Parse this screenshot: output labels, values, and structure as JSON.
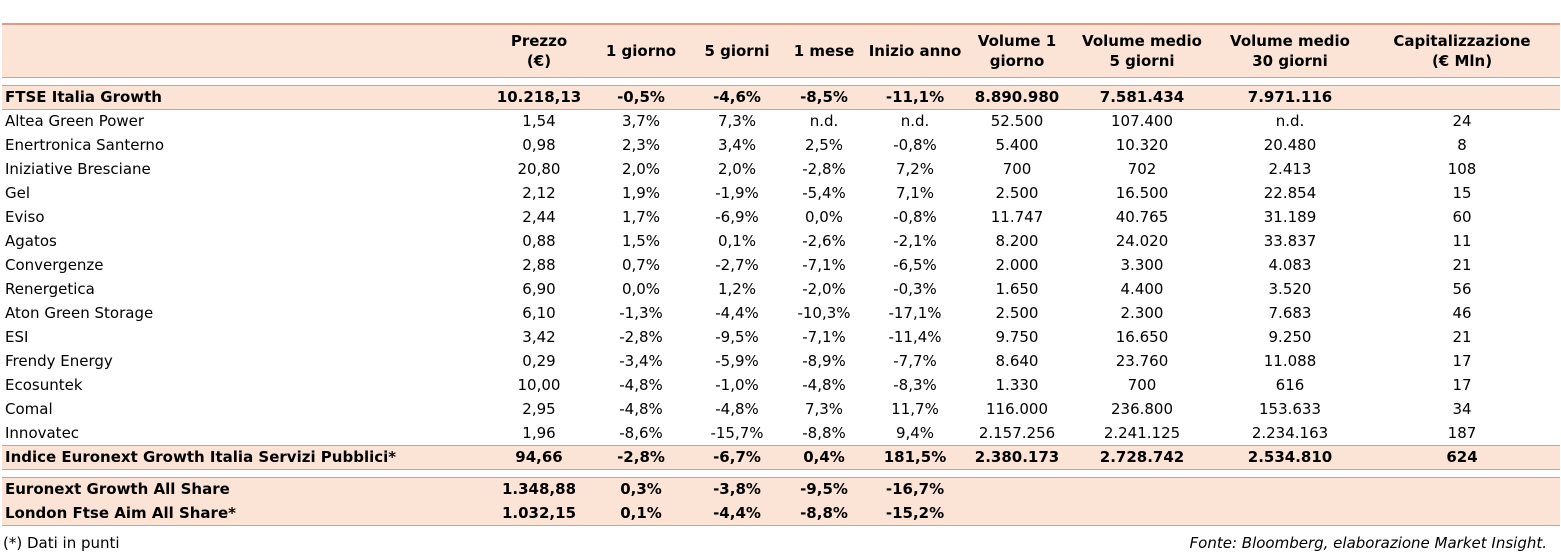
{
  "headers": {
    "name": "",
    "prezzo_l1": "Prezzo",
    "prezzo_l2": "(€)",
    "g1": "1 giorno",
    "g5": "5 giorni",
    "m1": "1 mese",
    "ia": "Inizio anno",
    "v1_l1": "Volume 1",
    "v1_l2": "giorno",
    "v5_l1": "Volume medio",
    "v5_l2": "5 giorni",
    "v30_l1": "Volume medio",
    "v30_l2": "30 giorni",
    "cap_l1": "Capitalizzazione",
    "cap_l2": "(€ Mln)"
  },
  "summary": {
    "name": "FTSE Italia Growth",
    "prezzo": "10.218,13",
    "g1": "-0,5%",
    "g5": "-4,6%",
    "m1": "-8,5%",
    "ia": "-11,1%",
    "v1": "8.890.980",
    "v5": "7.581.434",
    "v30": "7.971.116",
    "cap": ""
  },
  "rows": [
    {
      "name": "Altea Green Power",
      "prezzo": "1,54",
      "g1": "3,7%",
      "g5": "7,3%",
      "m1": "n.d.",
      "ia": "n.d.",
      "v1": "52.500",
      "v5": "107.400",
      "v30": "n.d.",
      "cap": "24"
    },
    {
      "name": "Enertronica Santerno",
      "prezzo": "0,98",
      "g1": "2,3%",
      "g5": "3,4%",
      "m1": "2,5%",
      "ia": "-0,8%",
      "v1": "5.400",
      "v5": "10.320",
      "v30": "20.480",
      "cap": "8"
    },
    {
      "name": "Iniziative Bresciane",
      "prezzo": "20,80",
      "g1": "2,0%",
      "g5": "2,0%",
      "m1": "-2,8%",
      "ia": "7,2%",
      "v1": "700",
      "v5": "702",
      "v30": "2.413",
      "cap": "108"
    },
    {
      "name": "Gel",
      "prezzo": "2,12",
      "g1": "1,9%",
      "g5": "-1,9%",
      "m1": "-5,4%",
      "ia": "7,1%",
      "v1": "2.500",
      "v5": "16.500",
      "v30": "22.854",
      "cap": "15"
    },
    {
      "name": "Eviso",
      "prezzo": "2,44",
      "g1": "1,7%",
      "g5": "-6,9%",
      "m1": "0,0%",
      "ia": "-0,8%",
      "v1": "11.747",
      "v5": "40.765",
      "v30": "31.189",
      "cap": "60"
    },
    {
      "name": "Agatos",
      "prezzo": "0,88",
      "g1": "1,5%",
      "g5": "0,1%",
      "m1": "-2,6%",
      "ia": "-2,1%",
      "v1": "8.200",
      "v5": "24.020",
      "v30": "33.837",
      "cap": "11"
    },
    {
      "name": "Convergenze",
      "prezzo": "2,88",
      "g1": "0,7%",
      "g5": "-2,7%",
      "m1": "-7,1%",
      "ia": "-6,5%",
      "v1": "2.000",
      "v5": "3.300",
      "v30": "4.083",
      "cap": "21"
    },
    {
      "name": "Renergetica",
      "prezzo": "6,90",
      "g1": "0,0%",
      "g5": "1,2%",
      "m1": "-2,0%",
      "ia": "-0,3%",
      "v1": "1.650",
      "v5": "4.400",
      "v30": "3.520",
      "cap": "56"
    },
    {
      "name": "Aton Green Storage",
      "prezzo": "6,10",
      "g1": "-1,3%",
      "g5": "-4,4%",
      "m1": "-10,3%",
      "ia": "-17,1%",
      "v1": "2.500",
      "v5": "2.300",
      "v30": "7.683",
      "cap": "46"
    },
    {
      "name": "ESI",
      "prezzo": "3,42",
      "g1": "-2,8%",
      "g5": "-9,5%",
      "m1": "-7,1%",
      "ia": "-11,4%",
      "v1": "9.750",
      "v5": "16.650",
      "v30": "9.250",
      "cap": "21"
    },
    {
      "name": "Frendy Energy",
      "prezzo": "0,29",
      "g1": "-3,4%",
      "g5": "-5,9%",
      "m1": "-8,9%",
      "ia": "-7,7%",
      "v1": "8.640",
      "v5": "23.760",
      "v30": "11.088",
      "cap": "17"
    },
    {
      "name": "Ecosuntek",
      "prezzo": "10,00",
      "g1": "-4,8%",
      "g5": "-1,0%",
      "m1": "-4,8%",
      "ia": "-8,3%",
      "v1": "1.330",
      "v5": "700",
      "v30": "616",
      "cap": "17"
    },
    {
      "name": "Comal",
      "prezzo": "2,95",
      "g1": "-4,8%",
      "g5": "-4,8%",
      "m1": "7,3%",
      "ia": "11,7%",
      "v1": "116.000",
      "v5": "236.800",
      "v30": "153.633",
      "cap": "34"
    },
    {
      "name": "Innovatec",
      "prezzo": "1,96",
      "g1": "-8,6%",
      "g5": "-15,7%",
      "m1": "-8,8%",
      "ia": "9,4%",
      "v1": "2.157.256",
      "v5": "2.241.125",
      "v30": "2.234.163",
      "cap": "187"
    }
  ],
  "index": {
    "name": "Indice Euronext Growth Italia Servizi Pubblici*",
    "prezzo": "94,66",
    "g1": "-2,8%",
    "g5": "-6,7%",
    "m1": "0,4%",
    "ia": "181,5%",
    "v1": "2.380.173",
    "v5": "2.728.742",
    "v30": "2.534.810",
    "cap": "624"
  },
  "all_share": [
    {
      "name": "Euronext Growth All Share",
      "prezzo": "1.348,88",
      "g1": "0,3%",
      "g5": "-3,8%",
      "m1": "-9,5%",
      "ia": "-16,7%"
    },
    {
      "name": "London Ftse Aim All Share*",
      "prezzo": "1.032,15",
      "g1": "0,1%",
      "g5": "-4,4%",
      "m1": "-8,8%",
      "ia": "-15,2%"
    }
  ],
  "footer": {
    "note": "(*) Dati in punti",
    "source": "Fonte: Bloomberg, elaborazione Market Insight."
  }
}
